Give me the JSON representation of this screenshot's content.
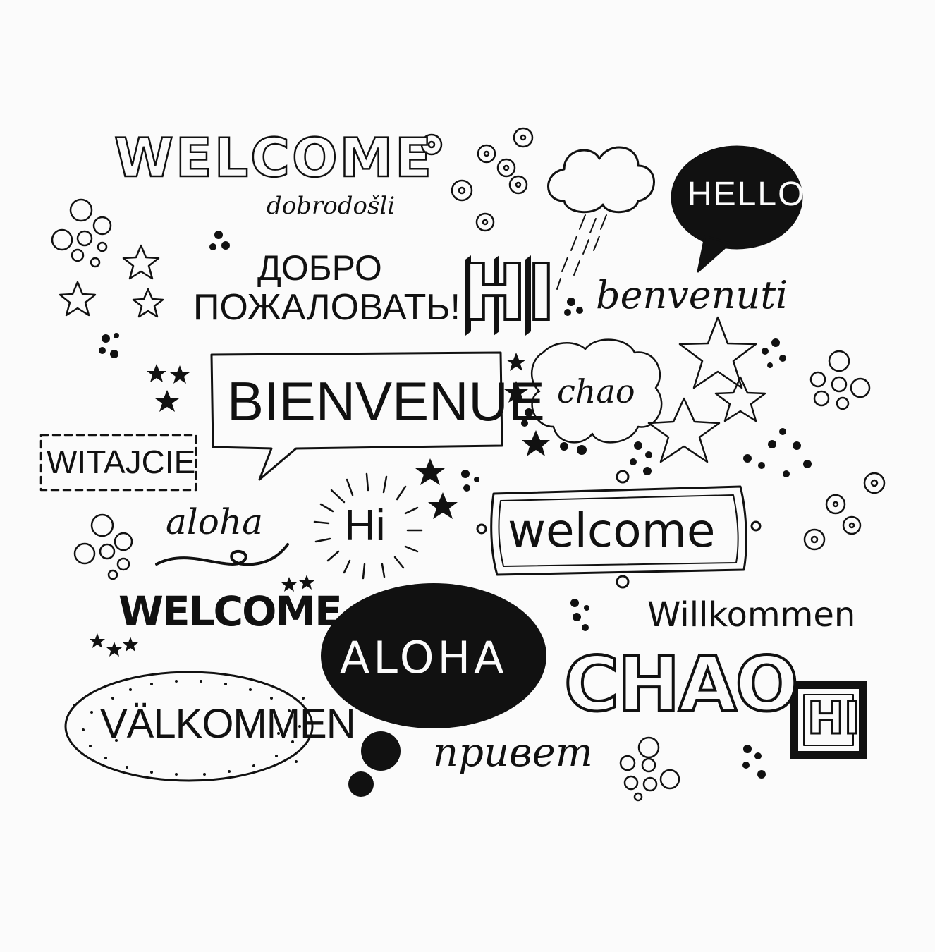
{
  "theme": {
    "ink": "#111111",
    "paper": "#fbfbfb"
  },
  "words": {
    "welcome_outline": "WELCOME",
    "dobrodosli": "dobrodošli",
    "hello": "HELLO",
    "dobro_line1": "ДОБРО",
    "dobro_line2": "ПОЖАЛОВАТЬ!",
    "hi_block": "HI",
    "benvenuti": "benvenuti",
    "bienvenue": "BIENVENUE",
    "chao_cloud": "chao",
    "witajcie": "WITAJCIE",
    "aloha_script": "aloha",
    "hi_burst": "Hi",
    "welcome_frame": "welcome",
    "welcome_bold": "WELCOME",
    "willkommen": "Willkommen",
    "aloha_bubble": "ALOHA",
    "chao_big": "CHAO",
    "hi_box": "HI",
    "valkommen": "VÄLKOMMEN",
    "privet": "привет"
  },
  "icons": [
    "flower-icon",
    "cloud-icon",
    "rain-icon",
    "star-icon",
    "circle-cluster-icon",
    "dot-cluster-icon",
    "speech-bubble-icon",
    "sunburst-icon",
    "swirl-icon"
  ]
}
